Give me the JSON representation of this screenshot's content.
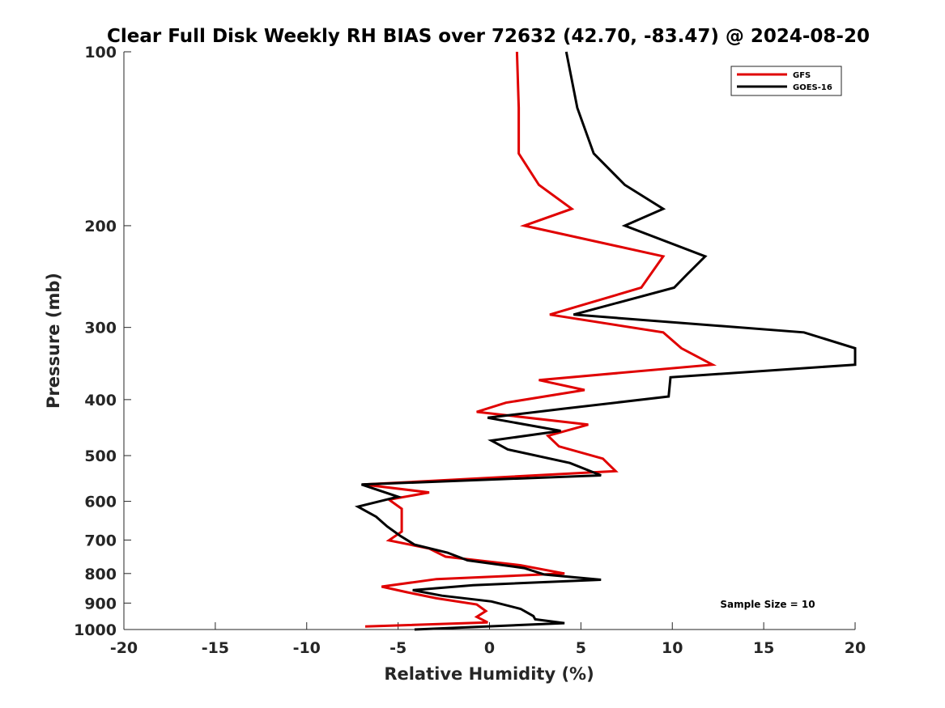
{
  "chart_data": {
    "type": "line",
    "title": "Clear Full Disk Weekly RH BIAS over 72632 (42.70, -83.47) @ 2024-08-20",
    "xlabel": "Relative Humidity (%)",
    "ylabel": "Pressure (mb)",
    "xlim": [
      -20,
      20
    ],
    "ylim": [
      100,
      1000
    ],
    "yscale": "log",
    "y_reversed": true,
    "xticks": [
      -20,
      -15,
      -10,
      -5,
      0,
      5,
      10,
      15,
      20
    ],
    "xtick_labels": [
      "-20",
      "-15",
      "-10",
      "-5",
      "0",
      "5",
      "10",
      "15",
      "20"
    ],
    "yticks": [
      100,
      200,
      300,
      400,
      500,
      600,
      700,
      800,
      900,
      1000
    ],
    "ytick_labels": [
      "100",
      "200",
      "300",
      "400",
      "500",
      "600",
      "700",
      "800",
      "900",
      "1000"
    ],
    "grid": false,
    "legend_position": "top-right",
    "annotation": "Sample Size = 10",
    "series": [
      {
        "name": "GFS",
        "color": "#e00000",
        "points": [
          [
            1.5,
            100
          ],
          [
            1.6,
            125
          ],
          [
            1.6,
            150
          ],
          [
            2.7,
            170
          ],
          [
            4.5,
            187
          ],
          [
            1.9,
            200
          ],
          [
            9.5,
            226
          ],
          [
            8.3,
            256
          ],
          [
            3.3,
            285
          ],
          [
            9.5,
            306
          ],
          [
            10.5,
            326
          ],
          [
            12.2,
            348
          ],
          [
            2.7,
            370
          ],
          [
            5.2,
            385
          ],
          [
            0.9,
            405
          ],
          [
            -0.7,
            420
          ],
          [
            5.4,
            442
          ],
          [
            3.2,
            462
          ],
          [
            3.8,
            482
          ],
          [
            6.2,
            506
          ],
          [
            6.9,
            532
          ],
          [
            -6.9,
            561
          ],
          [
            -3.3,
            579
          ],
          [
            -5.5,
            596
          ],
          [
            -4.8,
            618
          ],
          [
            -4.8,
            646
          ],
          [
            -4.8,
            677
          ],
          [
            -5.5,
            701
          ],
          [
            -3.3,
            724
          ],
          [
            -2.4,
            748
          ],
          [
            1.7,
            774
          ],
          [
            4.1,
            800
          ],
          [
            -2.9,
            818
          ],
          [
            -5.9,
            843
          ],
          [
            -4.5,
            862
          ],
          [
            -2.9,
            883
          ],
          [
            -0.7,
            905
          ],
          [
            -0.2,
            929
          ],
          [
            -0.7,
            951
          ],
          [
            -0.1,
            972
          ],
          [
            -6.8,
            988
          ]
        ]
      },
      {
        "name": "GOES-16",
        "color": "#000000",
        "points": [
          [
            4.2,
            100
          ],
          [
            4.8,
            125
          ],
          [
            5.7,
            150
          ],
          [
            7.4,
            170
          ],
          [
            9.5,
            187
          ],
          [
            7.4,
            200
          ],
          [
            11.8,
            226
          ],
          [
            10.8,
            243
          ],
          [
            10.1,
            256
          ],
          [
            4.6,
            285
          ],
          [
            17.2,
            306
          ],
          [
            20.0,
            326
          ],
          [
            20.0,
            348
          ],
          [
            9.9,
            366
          ],
          [
            9.8,
            395
          ],
          [
            4.0,
            415
          ],
          [
            -0.1,
            430
          ],
          [
            3.9,
            453
          ],
          [
            0.1,
            471
          ],
          [
            1.0,
            488
          ],
          [
            4.4,
            515
          ],
          [
            6.1,
            541
          ],
          [
            -7.0,
            561
          ],
          [
            -5.0,
            589
          ],
          [
            -7.2,
            613
          ],
          [
            -6.2,
            638
          ],
          [
            -5.6,
            663
          ],
          [
            -4.9,
            688
          ],
          [
            -4.1,
            713
          ],
          [
            -2.3,
            736
          ],
          [
            -1.2,
            759
          ],
          [
            1.9,
            783
          ],
          [
            3.0,
            803
          ],
          [
            6.1,
            820
          ],
          [
            -0.9,
            838
          ],
          [
            -4.2,
            855
          ],
          [
            -2.6,
            874
          ],
          [
            0.1,
            894
          ],
          [
            1.7,
            921
          ],
          [
            2.4,
            948
          ],
          [
            2.5,
            960
          ],
          [
            4.1,
            975
          ],
          [
            -4.1,
            1000
          ]
        ]
      }
    ]
  }
}
